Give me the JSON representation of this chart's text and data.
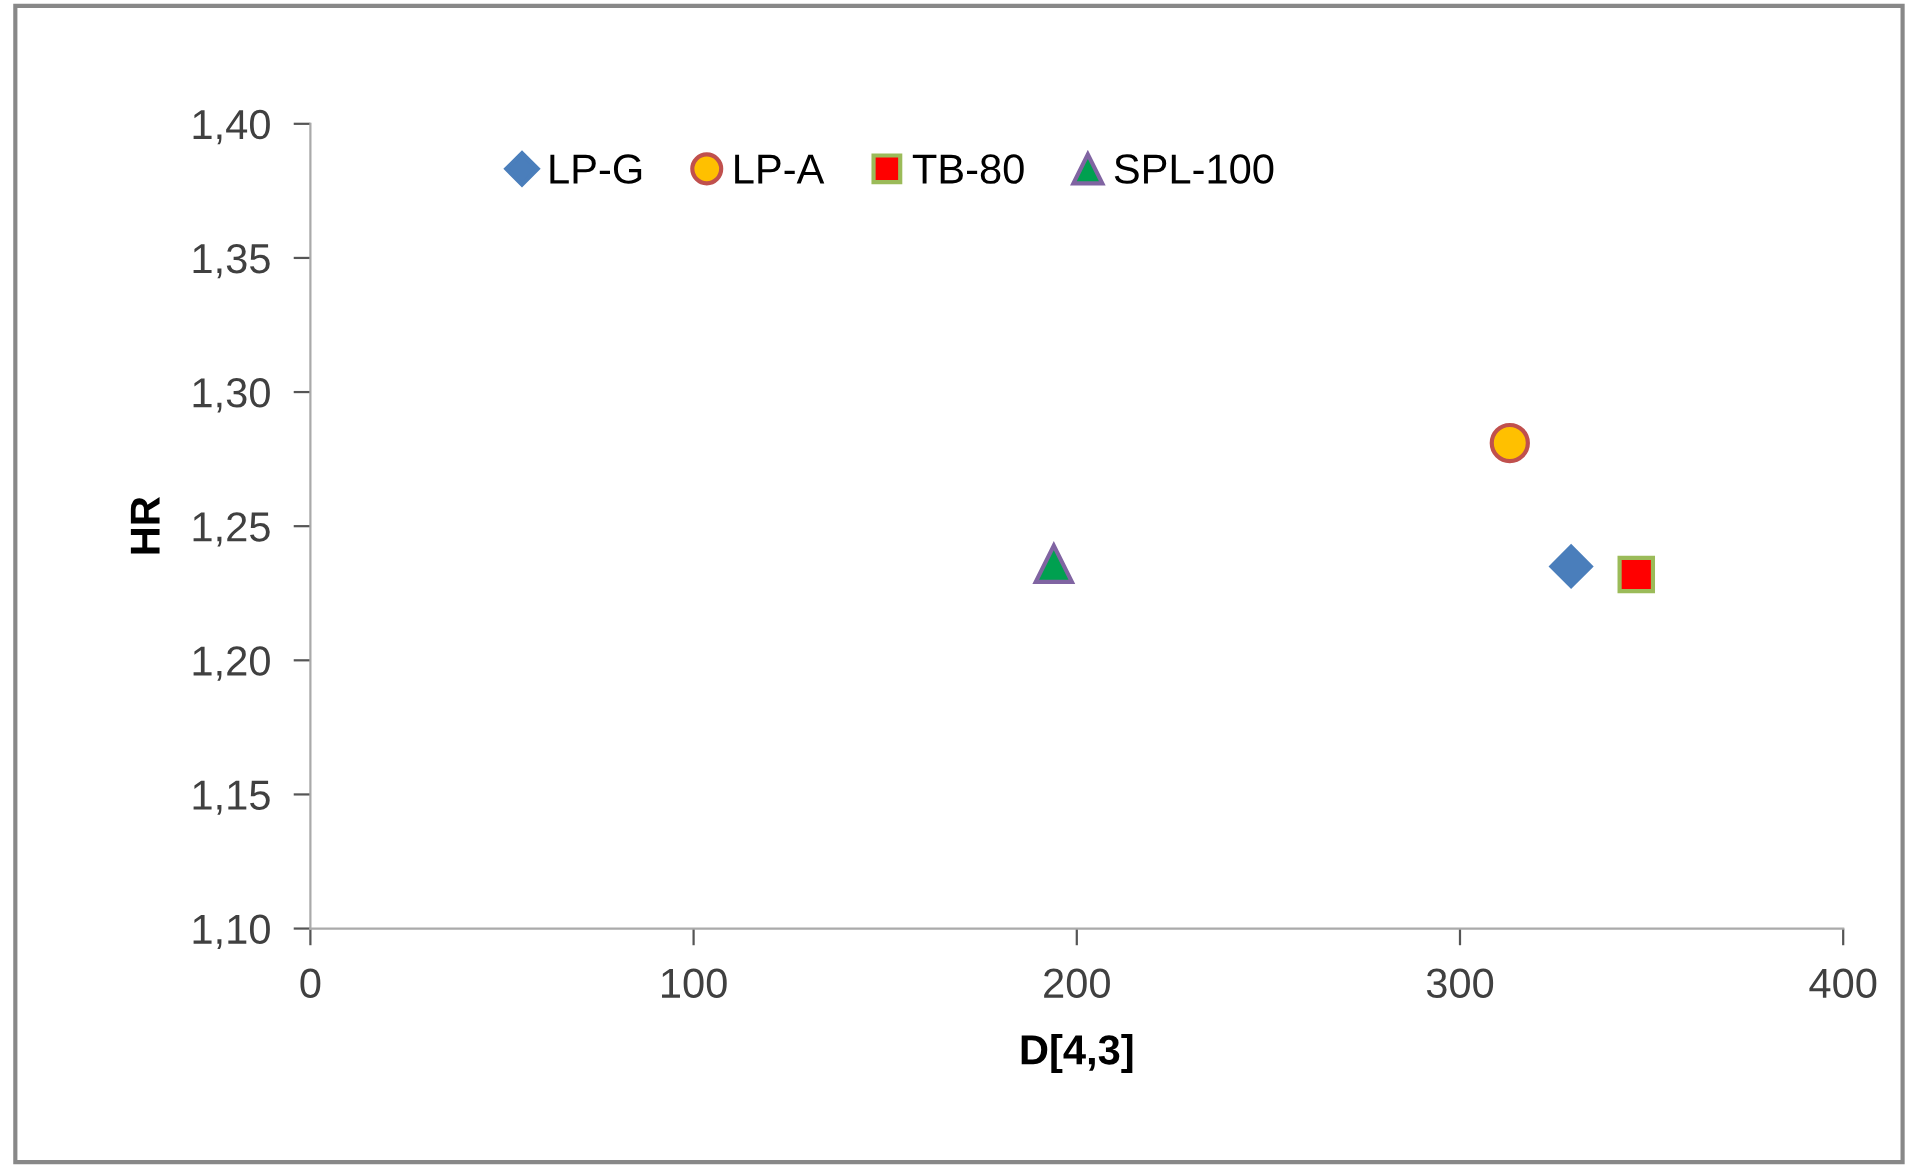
{
  "chart_data": {
    "type": "scatter",
    "xlabel": "D[4,3]",
    "ylabel": "HR",
    "xlim": [
      0,
      400
    ],
    "xticks": [
      0,
      100,
      200,
      300,
      400
    ],
    "ylim": [
      1.1,
      1.4
    ],
    "yticks": [
      {
        "value": 1.1,
        "label": "1,10"
      },
      {
        "value": 1.15,
        "label": "1,15"
      },
      {
        "value": 1.2,
        "label": "1,20"
      },
      {
        "value": 1.25,
        "label": "1,25"
      },
      {
        "value": 1.3,
        "label": "1,30"
      },
      {
        "value": 1.35,
        "label": "1,35"
      },
      {
        "value": 1.4,
        "label": "1,40"
      }
    ],
    "grid": false,
    "legend": "top left",
    "series": [
      {
        "name": "LP-G",
        "color": "#4a7ebb",
        "marker": "diamond",
        "x": [
          329
        ],
        "values": [
          1.235
        ]
      },
      {
        "name": "LP-A",
        "color": "#ffc000",
        "marker": "circle",
        "x": [
          313
        ],
        "values": [
          1.281
        ]
      },
      {
        "name": "TB-80",
        "color": "#ff0000",
        "marker": "square",
        "x": [
          346
        ],
        "values": [
          1.232
        ]
      },
      {
        "name": "SPL-100",
        "color": "#00a050",
        "marker": "triangle",
        "x": [
          194
        ],
        "values": [
          1.236
        ]
      }
    ]
  }
}
